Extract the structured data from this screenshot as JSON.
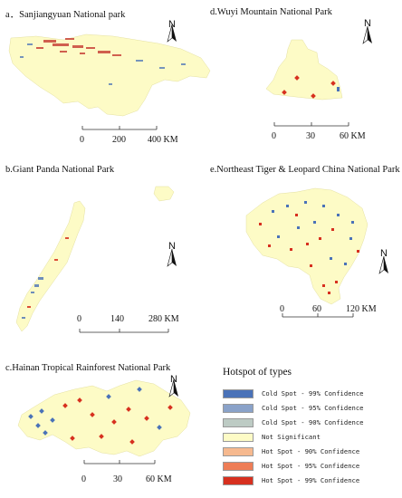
{
  "panels": {
    "a": {
      "title": "a．Sanjiangyuan National park",
      "north": "N",
      "scale": [
        "0",
        "200",
        "400 KM"
      ]
    },
    "b": {
      "title": "b.Giant Panda National Park",
      "north": "N",
      "scale": [
        "0",
        "140",
        "280 KM"
      ]
    },
    "c": {
      "title": "c.Hainan Tropical Rainforest National Park",
      "north": "N",
      "scale": [
        "0",
        "30",
        "60 KM"
      ]
    },
    "d": {
      "title": "d.Wuyi Mountain National Park",
      "north": "N",
      "scale": [
        "0",
        "30",
        "60 KM"
      ]
    },
    "e": {
      "title": "e.Northeast Tiger & Leopard China National Park",
      "north": "N",
      "scale": [
        "0",
        "60",
        "120 KM"
      ]
    }
  },
  "legend": {
    "title": "Hotspot of types",
    "items": [
      {
        "label": "Cold Spot - 99% Confidence",
        "color": "#4a72b8"
      },
      {
        "label": "Cold Spot - 95% Confidence",
        "color": "#8aa2c9"
      },
      {
        "label": "Cold Spot - 90% Confidence",
        "color": "#bdcbc4"
      },
      {
        "label": "Not Significant",
        "color": "#fdfbc6"
      },
      {
        "label": "Hot Spot - 90% Confidence",
        "color": "#f6b98f"
      },
      {
        "label": "Hot Spot - 95% Confidence",
        "color": "#ee7d56"
      },
      {
        "label": "Hot Spot - 99% Confidence",
        "color": "#d7301f"
      }
    ]
  }
}
